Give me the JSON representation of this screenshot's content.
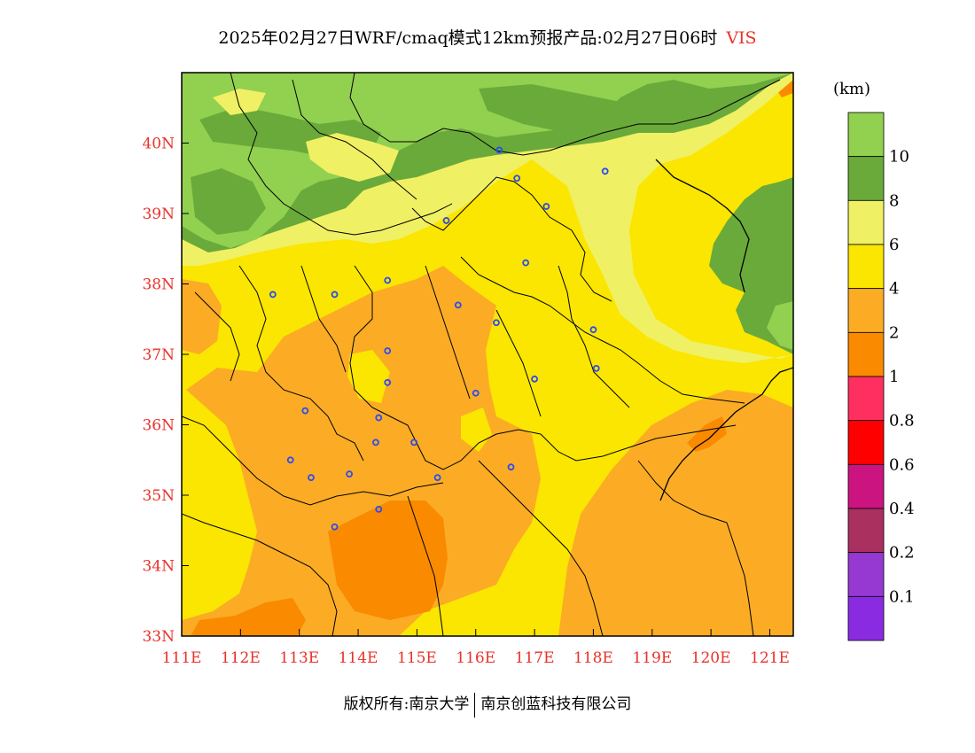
{
  "title": {
    "main": "2025年02月27日WRF/cmaq模式12km预报产品:02月27日06时",
    "variable": "VIS"
  },
  "map": {
    "lon_range": [
      111,
      121.4
    ],
    "lat_range": [
      33,
      41
    ],
    "x_ticks": [
      "111E",
      "112E",
      "113E",
      "114E",
      "115E",
      "116E",
      "117E",
      "118E",
      "119E",
      "120E",
      "121E"
    ],
    "y_ticks": [
      "33N",
      "34N",
      "35N",
      "36N",
      "37N",
      "38N",
      "39N",
      "40N"
    ],
    "colors": {
      "gt10": "#92d050",
      "8_10": "#6aaa3a",
      "6_8": "#f0f064",
      "4_6": "#fae600",
      "2_4": "#fbac24",
      "1_2": "#fa8a00",
      "tick_label": "#e8322a",
      "city_marker": "#2b4cf0"
    },
    "cities": [
      {
        "lon": 116.4,
        "lat": 39.9
      },
      {
        "lon": 116.7,
        "lat": 39.5
      },
      {
        "lon": 117.2,
        "lat": 39.1
      },
      {
        "lon": 118.2,
        "lat": 39.6
      },
      {
        "lon": 115.5,
        "lat": 38.9
      },
      {
        "lon": 116.85,
        "lat": 38.3
      },
      {
        "lon": 112.55,
        "lat": 37.85
      },
      {
        "lon": 113.6,
        "lat": 37.85
      },
      {
        "lon": 114.5,
        "lat": 38.05
      },
      {
        "lon": 115.7,
        "lat": 37.7
      },
      {
        "lon": 116.35,
        "lat": 37.45
      },
      {
        "lon": 118.0,
        "lat": 37.35
      },
      {
        "lon": 114.5,
        "lat": 37.05
      },
      {
        "lon": 114.5,
        "lat": 36.6
      },
      {
        "lon": 117.0,
        "lat": 36.65
      },
      {
        "lon": 118.05,
        "lat": 36.8
      },
      {
        "lon": 116.0,
        "lat": 36.45
      },
      {
        "lon": 113.1,
        "lat": 36.2
      },
      {
        "lon": 114.35,
        "lat": 36.1
      },
      {
        "lon": 114.3,
        "lat": 35.75
      },
      {
        "lon": 114.95,
        "lat": 35.75
      },
      {
        "lon": 112.85,
        "lat": 35.5
      },
      {
        "lon": 113.2,
        "lat": 35.25
      },
      {
        "lon": 113.85,
        "lat": 35.3
      },
      {
        "lon": 115.35,
        "lat": 35.25
      },
      {
        "lon": 116.6,
        "lat": 35.4
      },
      {
        "lon": 114.35,
        "lat": 34.8
      },
      {
        "lon": 113.6,
        "lat": 34.55
      }
    ]
  },
  "legend": {
    "unit": "(km)",
    "colors": [
      "#92d050",
      "#6aaa3a",
      "#f0f064",
      "#fae600",
      "#fbac24",
      "#fa8a00",
      "#ff3060",
      "#ff0000",
      "#cc1480",
      "#aa3060",
      "#9638d2",
      "#8a2be2"
    ],
    "labels": [
      "10",
      "8",
      "6",
      "4",
      "2",
      "1",
      "0.8",
      "0.6",
      "0.4",
      "0.2",
      "0.1"
    ]
  },
  "footer": {
    "left": "版权所有:南京大学",
    "right": "南京创蓝科技有限公司"
  }
}
